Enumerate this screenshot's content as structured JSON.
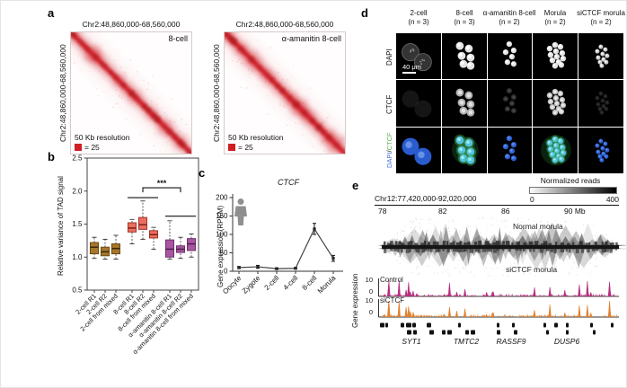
{
  "panels": {
    "a": {
      "label": "a",
      "heat_color": "#cf1e25",
      "maps": [
        {
          "title": "Chr2:48,860,000-68,560,000",
          "y_label": "Chr2:48,860,000-68,560,000",
          "condition": "8-cell",
          "resolution": "50 Kb resolution",
          "scale_legend": "= 25"
        },
        {
          "title": "Chr2:48,860,000-68,560,000",
          "y_label": "Chr2:48,860,000-68,560,000",
          "condition": "α-amanitin 8-cell",
          "resolution": "50 Kb resolution",
          "scale_legend": "= 25"
        }
      ]
    },
    "b": {
      "label": "b"
    },
    "c": {
      "label": "c"
    },
    "d": {
      "label": "d",
      "scale_bar": "40 μm",
      "columns": [
        {
          "name": "2-cell",
          "n": "(n = 3)"
        },
        {
          "name": "8-cell",
          "n": "(n = 3)"
        },
        {
          "name": "α-amanitin 8-cell",
          "n": "(n = 2)"
        },
        {
          "name": "Morula",
          "n": "(n = 2)"
        },
        {
          "name": "siCTCF morula",
          "n": "(n = 2)"
        }
      ],
      "rows": [
        {
          "label": "DAPI"
        },
        {
          "label": "CTCF"
        },
        {
          "dapi": "DAPI",
          "slash": "/",
          "ctcf": "CTCF",
          "dapi_color": "#4468d8",
          "ctcf_color": "#5fb24a"
        }
      ]
    },
    "e": {
      "label": "e",
      "region": "Chr12:77,420,000-92,020,000",
      "colorbar": {
        "title": "Normalized reads",
        "min": "0",
        "max": "400"
      },
      "axis_ticks": [
        "78",
        "82",
        "86",
        "90 Mb"
      ],
      "hic_tracks": [
        {
          "label": "Normal morula"
        },
        {
          "label": "siCTCF morula"
        }
      ],
      "expression": {
        "ylabel": "Gene expression",
        "tracks": [
          {
            "label": "Control",
            "color": "#b5307d",
            "ymax": "10",
            "ymin": "0"
          },
          {
            "label": "siCTCF",
            "color": "#e0812e",
            "ymax": "10",
            "ymin": "0"
          }
        ]
      },
      "genes": [
        "SYT1",
        "TMTC2",
        "RASSF9",
        "DUSP6"
      ]
    }
  },
  "chart_data": [
    {
      "id": "panel-b",
      "type": "box",
      "ylabel": "Relative variance of TAD signal",
      "ylim": [
        0.5,
        2.5
      ],
      "yticks": [
        0.5,
        1.0,
        1.5,
        2.0,
        2.5
      ],
      "categories": [
        "2-cell R1",
        "2-cell R2",
        "2-cell from mixed",
        "8-cell R1",
        "8-cell R2",
        "8-cell from mixed",
        "α-amanitin 8-cell R1",
        "α-amanitin 8-cell R2",
        "α-amanitin 8-cell from mixed"
      ],
      "groups": [
        {
          "name": "2-cell",
          "fill": "#a6772c",
          "stroke": "#6a4a12",
          "median": "#3a2a08"
        },
        {
          "name": "8-cell",
          "fill": "#ec6e60",
          "stroke": "#a33328",
          "median": "#7c1f18"
        },
        {
          "name": "α-amanitin 8-cell",
          "fill": "#a855a2",
          "stroke": "#6e3168",
          "median": "#4c1f48"
        }
      ],
      "boxes": [
        {
          "whisker_low": 0.98,
          "q1": 1.05,
          "median": 1.15,
          "q3": 1.22,
          "whisker_high": 1.3
        },
        {
          "whisker_low": 0.97,
          "q1": 1.02,
          "median": 1.08,
          "q3": 1.15,
          "whisker_high": 1.27
        },
        {
          "whisker_low": 0.97,
          "q1": 1.05,
          "median": 1.13,
          "q3": 1.2,
          "whisker_high": 1.33
        },
        {
          "whisker_low": 1.2,
          "q1": 1.38,
          "median": 1.44,
          "q3": 1.52,
          "whisker_high": 1.57
        },
        {
          "whisker_low": 1.27,
          "q1": 1.42,
          "median": 1.49,
          "q3": 1.6,
          "whisker_high": 1.85
        },
        {
          "whisker_low": 1.12,
          "q1": 1.29,
          "median": 1.34,
          "q3": 1.4,
          "whisker_high": 1.45
        },
        {
          "whisker_low": 0.97,
          "q1": 1.0,
          "median": 1.12,
          "q3": 1.26,
          "whisker_high": 1.55
        },
        {
          "whisker_low": 0.98,
          "q1": 1.07,
          "median": 1.12,
          "q3": 1.17,
          "whisker_high": 1.3
        },
        {
          "whisker_low": 1.0,
          "q1": 1.1,
          "median": 1.2,
          "q3": 1.28,
          "whisker_high": 1.35
        }
      ],
      "significance": {
        "label": "***",
        "group_lines": [
          {
            "from": 3,
            "to": 5,
            "y": 1.9
          },
          {
            "from": 6,
            "to": 8,
            "y": 1.62
          }
        ],
        "bracket": {
          "x1_index": 4,
          "x2_index": 7,
          "y": 2.05
        }
      }
    },
    {
      "id": "panel-c",
      "type": "line",
      "title": "CTCF",
      "ylabel": "Gene expression (RPKM)",
      "ylim": [
        0,
        200
      ],
      "yticks": [
        0,
        50,
        100,
        150,
        200
      ],
      "categories": [
        "Oocyte",
        "Zygote",
        "2-cell",
        "4-cell",
        "8-cell",
        "Morula"
      ],
      "values": [
        10,
        12,
        7,
        8,
        115,
        35
      ],
      "errors": [
        3,
        4,
        2,
        2,
        15,
        8
      ],
      "species_icon": "human-silhouette"
    }
  ]
}
